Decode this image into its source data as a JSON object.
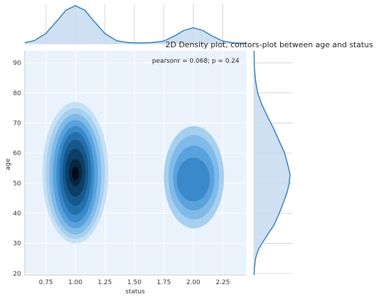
{
  "chart_data": {
    "type": "kde-jointplot",
    "title": "2D Density plot, contors-plot between age and status",
    "annotation": "pearsonr = 0.068; p = 0.24",
    "xlabel": "status",
    "ylabel": "age",
    "xlim": [
      0.57,
      2.45
    ],
    "ylim": [
      19.5,
      94
    ],
    "xticks": [
      "0.75",
      "1.00",
      "1.25",
      "1.50",
      "1.75",
      "2.00",
      "2.25"
    ],
    "yticks": [
      "20",
      "30",
      "40",
      "50",
      "60",
      "70",
      "80",
      "90"
    ],
    "grid": true,
    "colors": {
      "plot_background": "#eaf3fb",
      "marginal_line": "#2a7ab5",
      "marginal_fill": "#c6dbef",
      "grid": "#cccccc",
      "contour_levels": [
        "#c6e0f5",
        "#a6cff0",
        "#7fbae8",
        "#5aa2de",
        "#3a89cb",
        "#2370ad",
        "#16588c",
        "#0d3f66",
        "#08273f",
        "#020d18"
      ]
    },
    "joint_clusters": [
      {
        "center": [
          1.0,
          53
        ],
        "levels": [
          [
            0.72,
            1.28,
            30,
            77
          ],
          [
            0.75,
            1.25,
            31.5,
            75
          ],
          [
            0.78,
            1.22,
            33,
            73
          ],
          [
            0.81,
            1.19,
            35,
            71
          ],
          [
            0.84,
            1.16,
            37,
            69
          ],
          [
            0.865,
            1.135,
            39.5,
            67
          ],
          [
            0.89,
            1.11,
            42.5,
            64.5
          ],
          [
            0.915,
            1.085,
            45.5,
            61.5
          ],
          [
            0.945,
            1.055,
            49,
            58
          ],
          [
            0.97,
            1.03,
            51,
            55.5
          ]
        ]
      },
      {
        "center": [
          2.0,
          52
        ],
        "levels": [
          [
            1.75,
            2.26,
            35,
            69
          ],
          [
            1.79,
            2.22,
            38,
            66
          ],
          [
            1.83,
            2.18,
            41,
            62.5
          ],
          [
            1.86,
            2.14,
            44,
            58.5
          ]
        ]
      }
    ],
    "marginal_x": {
      "x": [
        0.57,
        0.65,
        0.75,
        0.85,
        0.92,
        1.0,
        1.08,
        1.15,
        1.25,
        1.35,
        1.45,
        1.55,
        1.65,
        1.75,
        1.85,
        1.92,
        2.0,
        2.08,
        2.15,
        2.25,
        2.35,
        2.45
      ],
      "density": [
        0.03,
        0.08,
        0.27,
        0.62,
        0.88,
        1.0,
        0.88,
        0.62,
        0.27,
        0.08,
        0.03,
        0.02,
        0.03,
        0.07,
        0.22,
        0.35,
        0.42,
        0.35,
        0.22,
        0.07,
        0.02,
        0.01
      ]
    },
    "marginal_y": {
      "y": [
        19.5,
        22,
        25,
        28,
        30,
        33,
        36,
        40,
        44,
        47,
        50,
        53,
        56,
        60,
        64,
        68,
        72,
        76,
        80,
        84,
        88,
        92,
        94
      ],
      "density": [
        0.0,
        0.01,
        0.04,
        0.12,
        0.22,
        0.38,
        0.55,
        0.7,
        0.83,
        0.92,
        0.98,
        1.0,
        0.94,
        0.85,
        0.7,
        0.55,
        0.38,
        0.22,
        0.1,
        0.04,
        0.01,
        0.0,
        0.0
      ]
    }
  }
}
